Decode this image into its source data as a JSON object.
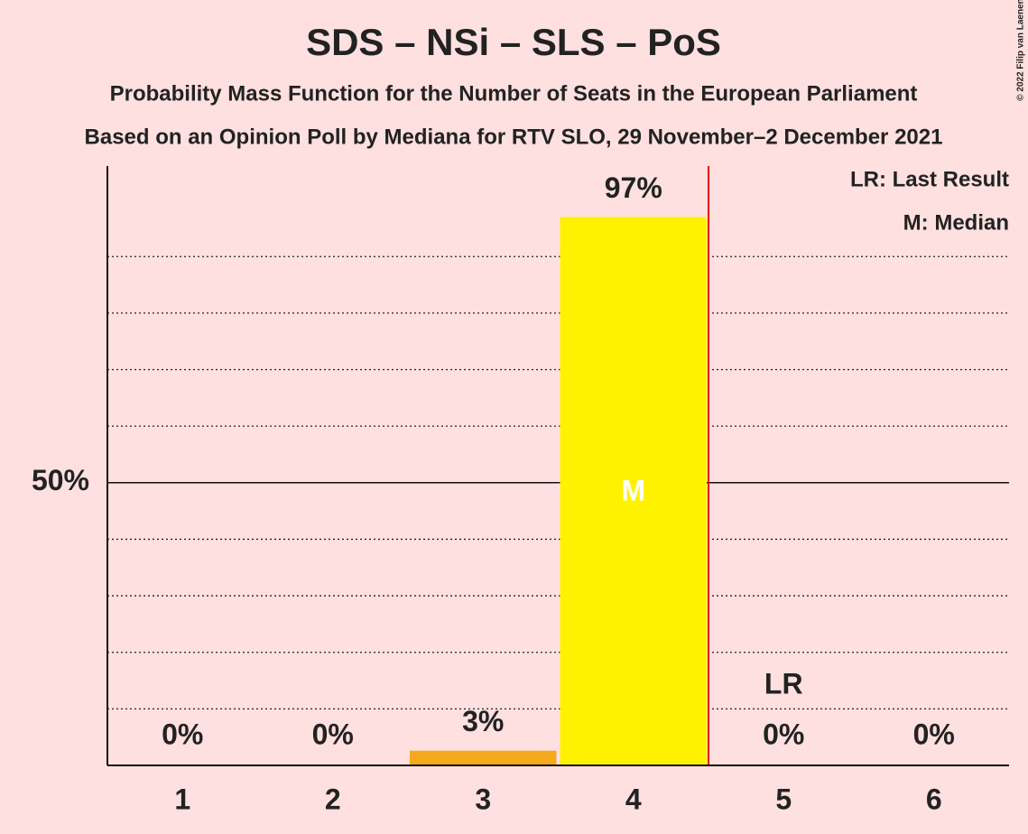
{
  "chart_data": {
    "type": "bar",
    "title": "SDS – NSi – SLS – PoS",
    "subtitle": "Probability Mass Function for the Number of Seats in the European Parliament",
    "subtitle2": "Based on an Opinion Poll by Mediana for RTV SLO, 29 November–2 December 2021",
    "copyright": "© 2022 Filip van Laenen",
    "categories": [
      "1",
      "2",
      "3",
      "4",
      "5",
      "6"
    ],
    "values": [
      0,
      0,
      2.6,
      97,
      0,
      0
    ],
    "value_labels": [
      "0%",
      "0%",
      "3%",
      "97%",
      "0%",
      "0%"
    ],
    "colors": [
      "#f5a91d",
      "#f5a91d",
      "#f5a91d",
      "#fff200",
      "#f5a91d",
      "#f5a91d"
    ],
    "ylim": [
      0,
      106
    ],
    "yticks": [
      {
        "value": 50,
        "label": "50%"
      }
    ],
    "minor_yticks": [
      10,
      20,
      30,
      40,
      60,
      70,
      80,
      90
    ],
    "annotations": [
      {
        "text": "M",
        "category": "4"
      },
      {
        "text": "LR",
        "category": "5"
      }
    ],
    "legend": [
      "LR: Last Result",
      "M: Median"
    ]
  }
}
